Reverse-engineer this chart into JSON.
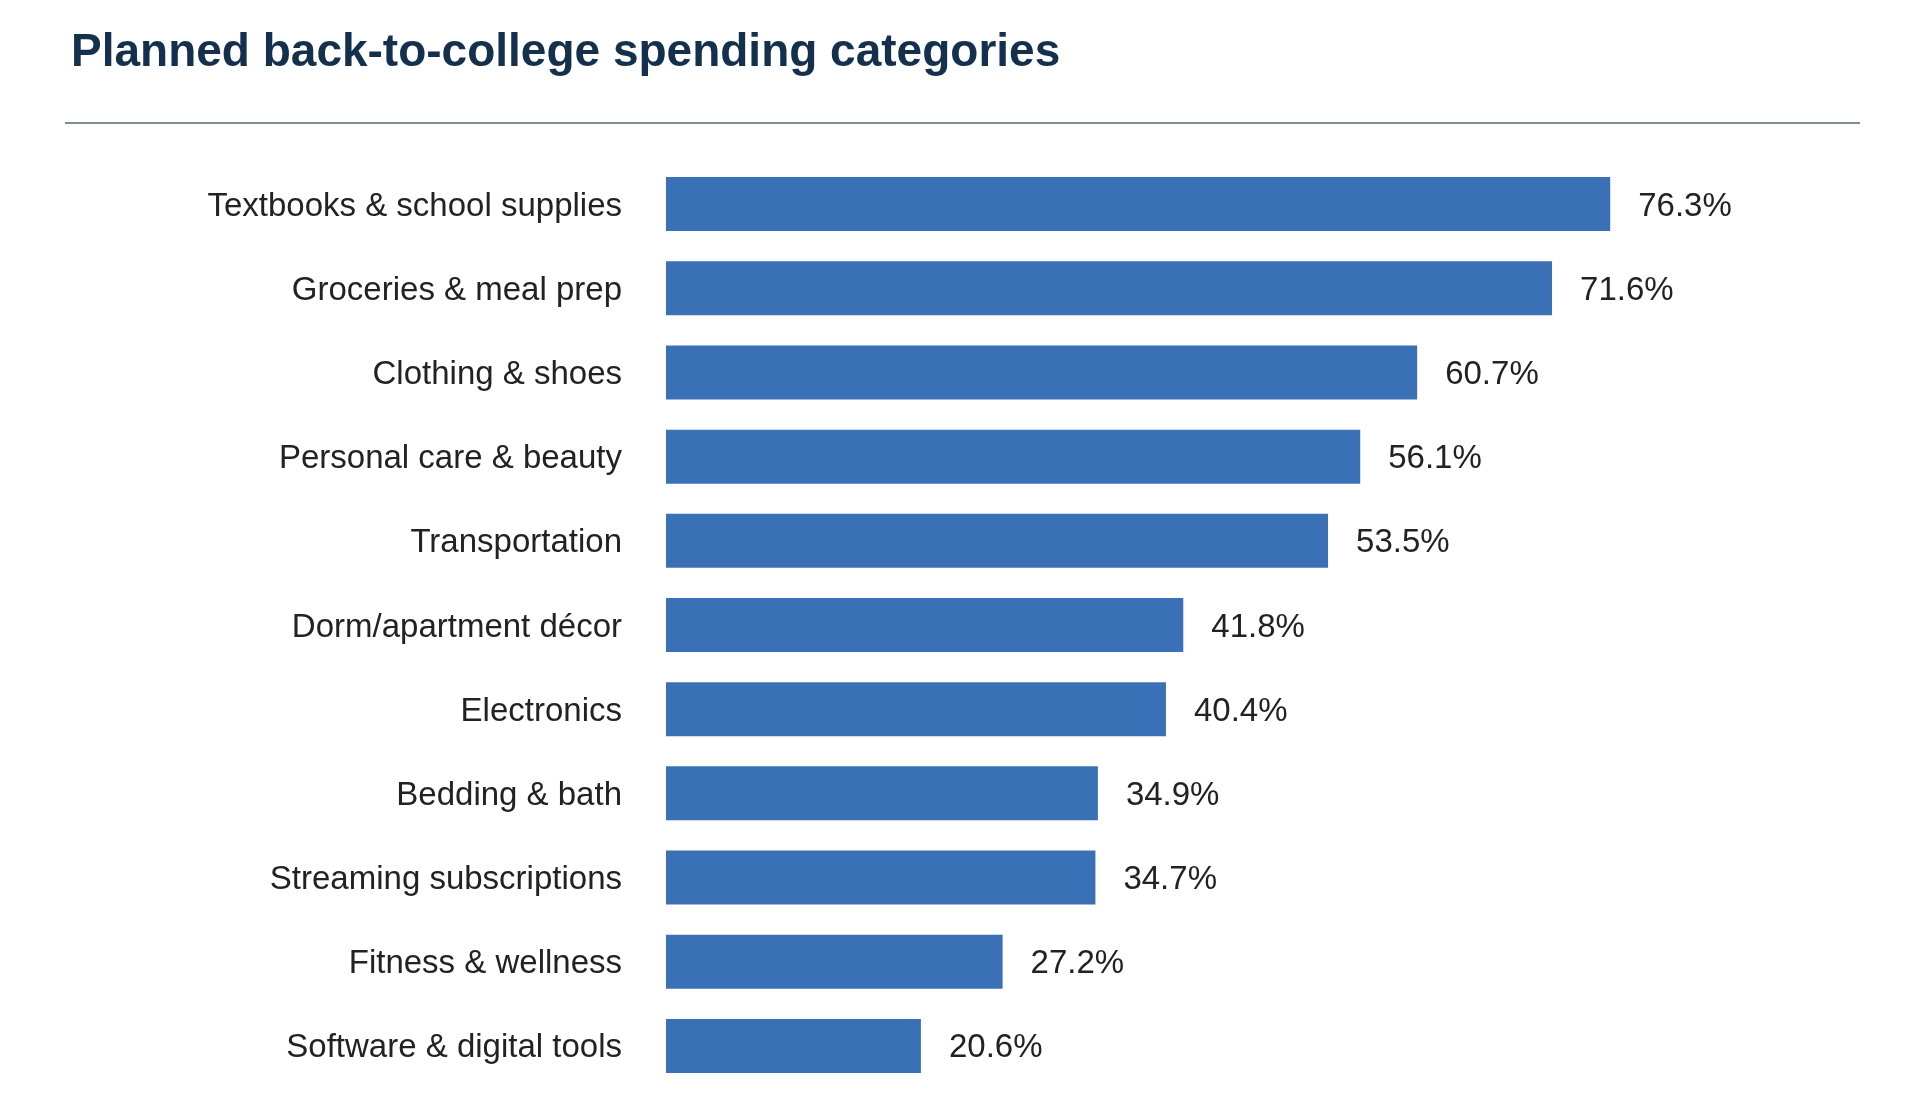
{
  "chart_data": {
    "type": "bar",
    "orientation": "horizontal",
    "title": "Planned back-to-college spending categories",
    "categories": [
      "Textbooks & school supplies",
      "Groceries & meal prep",
      "Clothing & shoes",
      "Personal care & beauty",
      "Transportation",
      "Dorm/apartment décor",
      "Electronics",
      "Bedding & bath",
      "Streaming subscriptions",
      "Fitness & wellness",
      "Software & digital tools"
    ],
    "values": [
      76.3,
      71.6,
      60.7,
      56.1,
      53.5,
      41.8,
      40.4,
      34.9,
      34.7,
      27.2,
      20.6
    ],
    "value_labels": [
      "76.3%",
      "71.6%",
      "60.7%",
      "56.1%",
      "53.5%",
      "41.8%",
      "40.4%",
      "34.9%",
      "34.7%",
      "27.2%",
      "20.6%"
    ],
    "color": "#3a71b6"
  }
}
